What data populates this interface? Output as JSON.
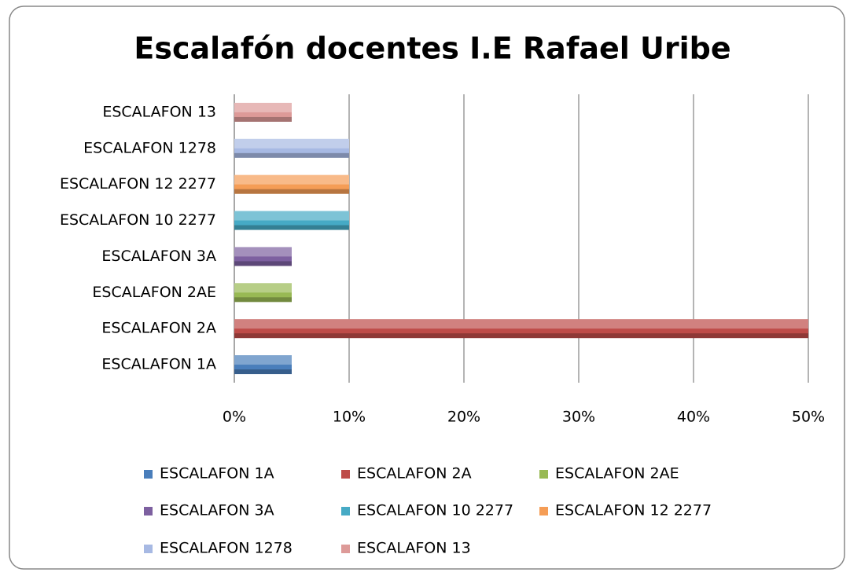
{
  "chart_data": {
    "type": "bar",
    "orientation": "horizontal",
    "title": "Escalafón docentes I.E Rafael Uribe",
    "categories": [
      "ESCALAFON 1A",
      "ESCALAFON 2A",
      "ESCALAFON 2AE",
      "ESCALAFON 3A",
      "ESCALAFON 10 2277",
      "ESCALAFON 12 2277",
      "ESCALAFON 1278",
      "ESCALAFON 13"
    ],
    "values": [
      5,
      50,
      5,
      5,
      10,
      10,
      10,
      5
    ],
    "colors": [
      "#4a7ebb",
      "#be4b48",
      "#98b954",
      "#7d60a0",
      "#46aac5",
      "#f59d56",
      "#a7b9e3",
      "#dd9a98"
    ],
    "xlim": [
      0,
      50
    ],
    "xticks": [
      {
        "value": 0,
        "label": "0%"
      },
      {
        "value": 10,
        "label": "10%"
      },
      {
        "value": 20,
        "label": "20%"
      },
      {
        "value": 30,
        "label": "30%"
      },
      {
        "value": 40,
        "label": "40%"
      },
      {
        "value": 50,
        "label": "50%"
      }
    ],
    "grid": true,
    "legend": "bottom"
  }
}
